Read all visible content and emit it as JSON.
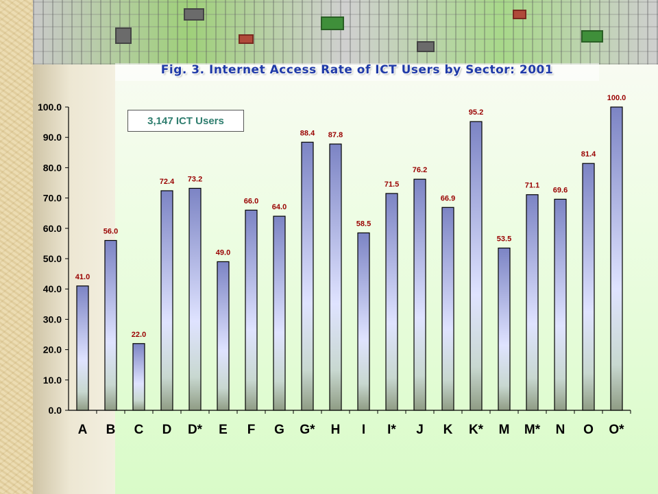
{
  "chart_data": {
    "type": "bar",
    "title": "Fig. 3. Internet Access Rate of ICT Users by Sector: 2001",
    "annotation": "3,147 ICT Users",
    "categories": [
      "A",
      "B",
      "C",
      "D",
      "D*",
      "E",
      "F",
      "G",
      "G*",
      "H",
      "I",
      "I*",
      "J",
      "K",
      "K*",
      "M",
      "M*",
      "N",
      "O",
      "O*"
    ],
    "values": [
      41.0,
      56.0,
      22.0,
      72.4,
      73.2,
      49.0,
      66.0,
      64.0,
      88.4,
      87.8,
      58.5,
      71.5,
      76.2,
      66.9,
      95.2,
      53.5,
      71.1,
      69.6,
      81.4,
      100.0
    ],
    "value_labels": [
      "41.0",
      "56.0",
      "22.0",
      "72.4",
      "73.2",
      "49.0",
      "66.0",
      "64.0",
      "88.4",
      "87.8",
      "58.5",
      "71.5",
      "76.2",
      "66.9",
      "95.2",
      "53.5",
      "71.1",
      "69.6",
      "81.4",
      "100.0"
    ],
    "xlabel": "",
    "ylabel": "",
    "ylim": [
      0,
      100
    ],
    "yticks": [
      "0.0",
      "10.0",
      "20.0",
      "30.0",
      "40.0",
      "50.0",
      "60.0",
      "70.0",
      "80.0",
      "90.0",
      "100.0"
    ],
    "grid": false,
    "colors": {
      "bar_top": "#7c84c4",
      "bar_mid": "#dfe3ff",
      "bar_bottom": "#8f9c84",
      "value_label": "#990000",
      "title": "#1f3aa8",
      "annotation": "#2e7d6e"
    }
  }
}
